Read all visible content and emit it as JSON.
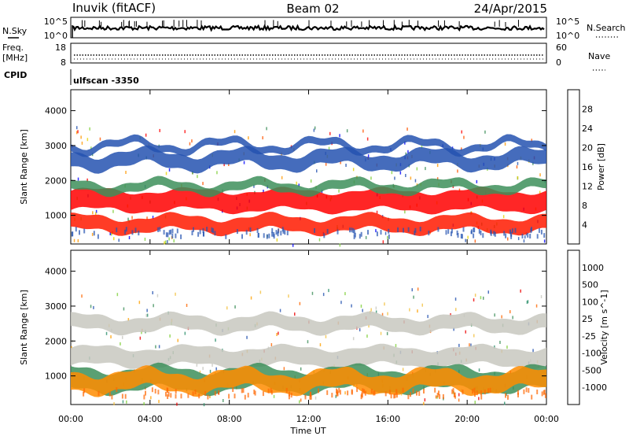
{
  "header": {
    "station": "Inuvik (fitACF)",
    "beam": "Beam 02",
    "date": "24/Apr/2015"
  },
  "sky_panel": {
    "label": "N.Sky",
    "y_ticks_left": [
      "10^5",
      "10^0"
    ],
    "y_ticks_right": [
      "10^5",
      "10^0"
    ],
    "right_label": "N.Search"
  },
  "freq_panel": {
    "label_line1": "Freq.",
    "label_line2": "[MHz]",
    "y_ticks_left": [
      "18",
      "8"
    ],
    "y_ticks_right": [
      "60",
      "0"
    ],
    "right_label": "Nave"
  },
  "cpid": {
    "label": "CPID",
    "program": "ulfscan -3350"
  },
  "x_axis": {
    "label": "Time UT",
    "ticks": [
      "00:00",
      "04:00",
      "08:00",
      "12:00",
      "16:00",
      "20:00",
      "00:00"
    ],
    "tick_hours": [
      0,
      4,
      8,
      12,
      16,
      20,
      24
    ],
    "range": [
      0,
      24
    ]
  },
  "chart_data": [
    {
      "type": "heatmap",
      "name": "power",
      "ylabel": "Slant Range [km]",
      "y_ticks": [
        1000,
        2000,
        3000,
        4000
      ],
      "ylim": [
        180,
        4600
      ],
      "xlim": [
        0,
        24
      ],
      "colorbar": {
        "label": "Power [dB]",
        "ticks": [
          "28",
          "24",
          "20",
          "16",
          "12",
          "8",
          "4"
        ],
        "colors": [
          "#0000ff",
          "#2452b0",
          "#3d8f5a",
          "#7fcf3a",
          "#e8d200",
          "#ff9900",
          "#ff5500",
          "#ff0000"
        ]
      },
      "bands": [
        {
          "range_lo": 1150,
          "range_hi": 1700,
          "color": "#ff0000"
        },
        {
          "range_lo": 550,
          "range_hi": 950,
          "color": "#ff1a00"
        },
        {
          "range_lo": 1700,
          "range_hi": 1950,
          "color": "#3d8f5a"
        },
        {
          "range_lo": 2400,
          "range_hi": 2800,
          "color": "#2452b0"
        },
        {
          "range_lo": 2900,
          "range_hi": 3100,
          "color": "#2452b0"
        }
      ]
    },
    {
      "type": "heatmap",
      "name": "velocity",
      "ylabel": "Slant Range [km]",
      "y_ticks": [
        1000,
        2000,
        3000,
        4000
      ],
      "ylim": [
        180,
        4600
      ],
      "xlim": [
        0,
        24
      ],
      "colorbar": {
        "label": "Velocity [m s^-1]",
        "ticks": [
          "1000",
          "500",
          "100",
          "25",
          "-25",
          "-100",
          "-500",
          "-1000"
        ],
        "colors": [
          "#ee0000",
          "#ff6600",
          "#ffa000",
          "#f2c040",
          "#c8c8c0",
          "#7fcf3a",
          "#3d8f5a",
          "#2a8f6a",
          "#2452b0"
        ]
      },
      "bands": [
        {
          "range_lo": 1300,
          "range_hi": 1800,
          "color": "#c8c8c0"
        },
        {
          "range_lo": 2300,
          "range_hi": 2700,
          "color": "#c8c8c0"
        },
        {
          "range_lo": 600,
          "range_hi": 1200,
          "color": "#3d8f5a"
        },
        {
          "range_lo": 600,
          "range_hi": 1100,
          "color": "#ff8c00"
        }
      ]
    }
  ]
}
